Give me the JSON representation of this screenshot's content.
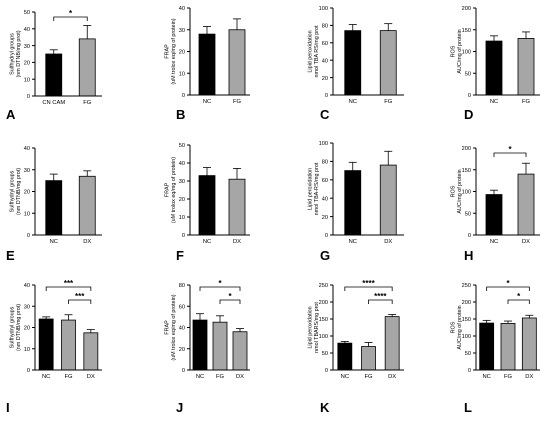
{
  "colors": {
    "black_bar": "#000000",
    "gray_bar": "#a6a6a6",
    "axis": "#000000"
  },
  "chart_data": [
    {
      "panel": "A",
      "type": "bar",
      "categories": [
        "CN CAM",
        "FG"
      ],
      "values": [
        25,
        34
      ],
      "errors": [
        2.5,
        8
      ],
      "bar_colors": [
        "black",
        "gray"
      ],
      "ylabel": "Sulfhydryl groups\n(nm DTNB/mg prot)",
      "ylim": [
        0,
        50
      ],
      "yticks": [
        0,
        10,
        20,
        30,
        40,
        50
      ],
      "significance": [
        {
          "from": 0,
          "to": 1,
          "label": "*"
        }
      ]
    },
    {
      "panel": "B",
      "type": "bar",
      "categories": [
        "NC",
        "FG"
      ],
      "values": [
        28,
        30
      ],
      "errors": [
        3.5,
        5
      ],
      "bar_colors": [
        "black",
        "gray"
      ],
      "ylabel": "FRAP\n(uM trolox eq/mg of protein)",
      "ylim": [
        0,
        40
      ],
      "yticks": [
        0,
        10,
        20,
        30,
        40
      ],
      "significance": []
    },
    {
      "panel": "C",
      "type": "bar",
      "categories": [
        "NC",
        "FG"
      ],
      "values": [
        74,
        74
      ],
      "errors": [
        7,
        8
      ],
      "bar_colors": [
        "black",
        "gray"
      ],
      "ylabel": "Lipid peroxidation\nnmol TBA RS/mg prot",
      "ylim": [
        0,
        100
      ],
      "yticks": [
        0,
        20,
        40,
        60,
        80,
        100
      ],
      "significance": []
    },
    {
      "panel": "D",
      "type": "bar",
      "categories": [
        "NC",
        "FG"
      ],
      "values": [
        124,
        130
      ],
      "errors": [
        12,
        15
      ],
      "bar_colors": [
        "black",
        "gray"
      ],
      "ylabel": "ROS\nAUC/mg of protein",
      "ylim": [
        0,
        200
      ],
      "yticks": [
        0,
        50,
        100,
        150,
        200
      ],
      "significance": []
    },
    {
      "panel": "E",
      "type": "bar",
      "categories": [
        "NC",
        "DX"
      ],
      "values": [
        25,
        27
      ],
      "errors": [
        3,
        2.5
      ],
      "bar_colors": [
        "black",
        "gray"
      ],
      "ylabel": "Sulfhydryl groups\n(nm DTNB/mg prot)",
      "ylim": [
        0,
        40
      ],
      "yticks": [
        0,
        10,
        20,
        30,
        40
      ],
      "significance": []
    },
    {
      "panel": "F",
      "type": "bar",
      "categories": [
        "NC",
        "DX"
      ],
      "values": [
        33,
        31
      ],
      "errors": [
        4.5,
        6
      ],
      "bar_colors": [
        "black",
        "gray"
      ],
      "ylabel": "FRAP\n(uM trolox eq/mg of protein)",
      "ylim": [
        0,
        50
      ],
      "yticks": [
        0,
        10,
        20,
        30,
        40,
        50
      ],
      "significance": []
    },
    {
      "panel": "G",
      "type": "bar",
      "categories": [
        "NC",
        "DX"
      ],
      "values": [
        70,
        76
      ],
      "errors": [
        9,
        15
      ],
      "bar_colors": [
        "black",
        "gray"
      ],
      "ylabel": "Lipid peroxidation\nnmol TBA-RS/mg prot",
      "ylim": [
        0,
        100
      ],
      "yticks": [
        0,
        20,
        40,
        60,
        80,
        100
      ],
      "significance": []
    },
    {
      "panel": "H",
      "type": "bar",
      "categories": [
        "NC",
        "DX"
      ],
      "values": [
        93,
        140
      ],
      "errors": [
        10,
        25
      ],
      "bar_colors": [
        "black",
        "gray"
      ],
      "ylabel": "ROS\nAUC/mg of protein",
      "ylim": [
        0,
        200
      ],
      "yticks": [
        0,
        50,
        100,
        150,
        200
      ],
      "significance": [
        {
          "from": 0,
          "to": 1,
          "label": "*"
        }
      ]
    },
    {
      "panel": "I",
      "type": "bar",
      "categories": [
        "NC",
        "FG",
        "DX"
      ],
      "values": [
        24,
        23.5,
        17.5
      ],
      "errors": [
        1,
        2.5,
        1.5
      ],
      "bar_colors": [
        "black",
        "gray",
        "gray"
      ],
      "ylabel": "Sulfhydryl groups\n(nm DTNB/mg prot)",
      "ylim": [
        0,
        40
      ],
      "yticks": [
        0,
        10,
        20,
        30,
        40
      ],
      "significance": [
        {
          "from": 0,
          "to": 2,
          "label": "***"
        },
        {
          "from": 1,
          "to": 2,
          "label": "***"
        }
      ]
    },
    {
      "panel": "J",
      "type": "bar",
      "categories": [
        "NC",
        "FG",
        "DX"
      ],
      "values": [
        47,
        45,
        36
      ],
      "errors": [
        6,
        6,
        3
      ],
      "bar_colors": [
        "black",
        "gray",
        "gray"
      ],
      "ylabel": "FRAP\n(uM trolox eq/mg of protein)",
      "ylim": [
        0,
        80
      ],
      "yticks": [
        0,
        20,
        40,
        60,
        80
      ],
      "significance": [
        {
          "from": 0,
          "to": 2,
          "label": "*"
        },
        {
          "from": 1,
          "to": 2,
          "label": "*"
        }
      ]
    },
    {
      "panel": "K",
      "type": "bar",
      "categories": [
        "NC",
        "FG",
        "DX"
      ],
      "values": [
        79,
        69,
        157
      ],
      "errors": [
        5,
        12,
        6
      ],
      "bar_colors": [
        "black",
        "gray",
        "gray"
      ],
      "ylabel": "Lipid peroxidation\nnmol TBARS/mg prot",
      "ylim": [
        0,
        250
      ],
      "yticks": [
        0,
        50,
        100,
        150,
        200,
        250
      ],
      "significance": [
        {
          "from": 0,
          "to": 2,
          "label": "****"
        },
        {
          "from": 1,
          "to": 2,
          "label": "****"
        }
      ]
    },
    {
      "panel": "L",
      "type": "bar",
      "categories": [
        "NC",
        "FG",
        "DX"
      ],
      "values": [
        138,
        137,
        153
      ],
      "errors": [
        8,
        7,
        8
      ],
      "bar_colors": [
        "black",
        "gray",
        "gray"
      ],
      "ylabel": "ROS\nAUC/mg of protein",
      "ylim": [
        0,
        250
      ],
      "yticks": [
        0,
        50,
        100,
        150,
        200,
        250
      ],
      "significance": [
        {
          "from": 0,
          "to": 2,
          "label": "*"
        },
        {
          "from": 1,
          "to": 2,
          "label": "*"
        }
      ]
    }
  ]
}
